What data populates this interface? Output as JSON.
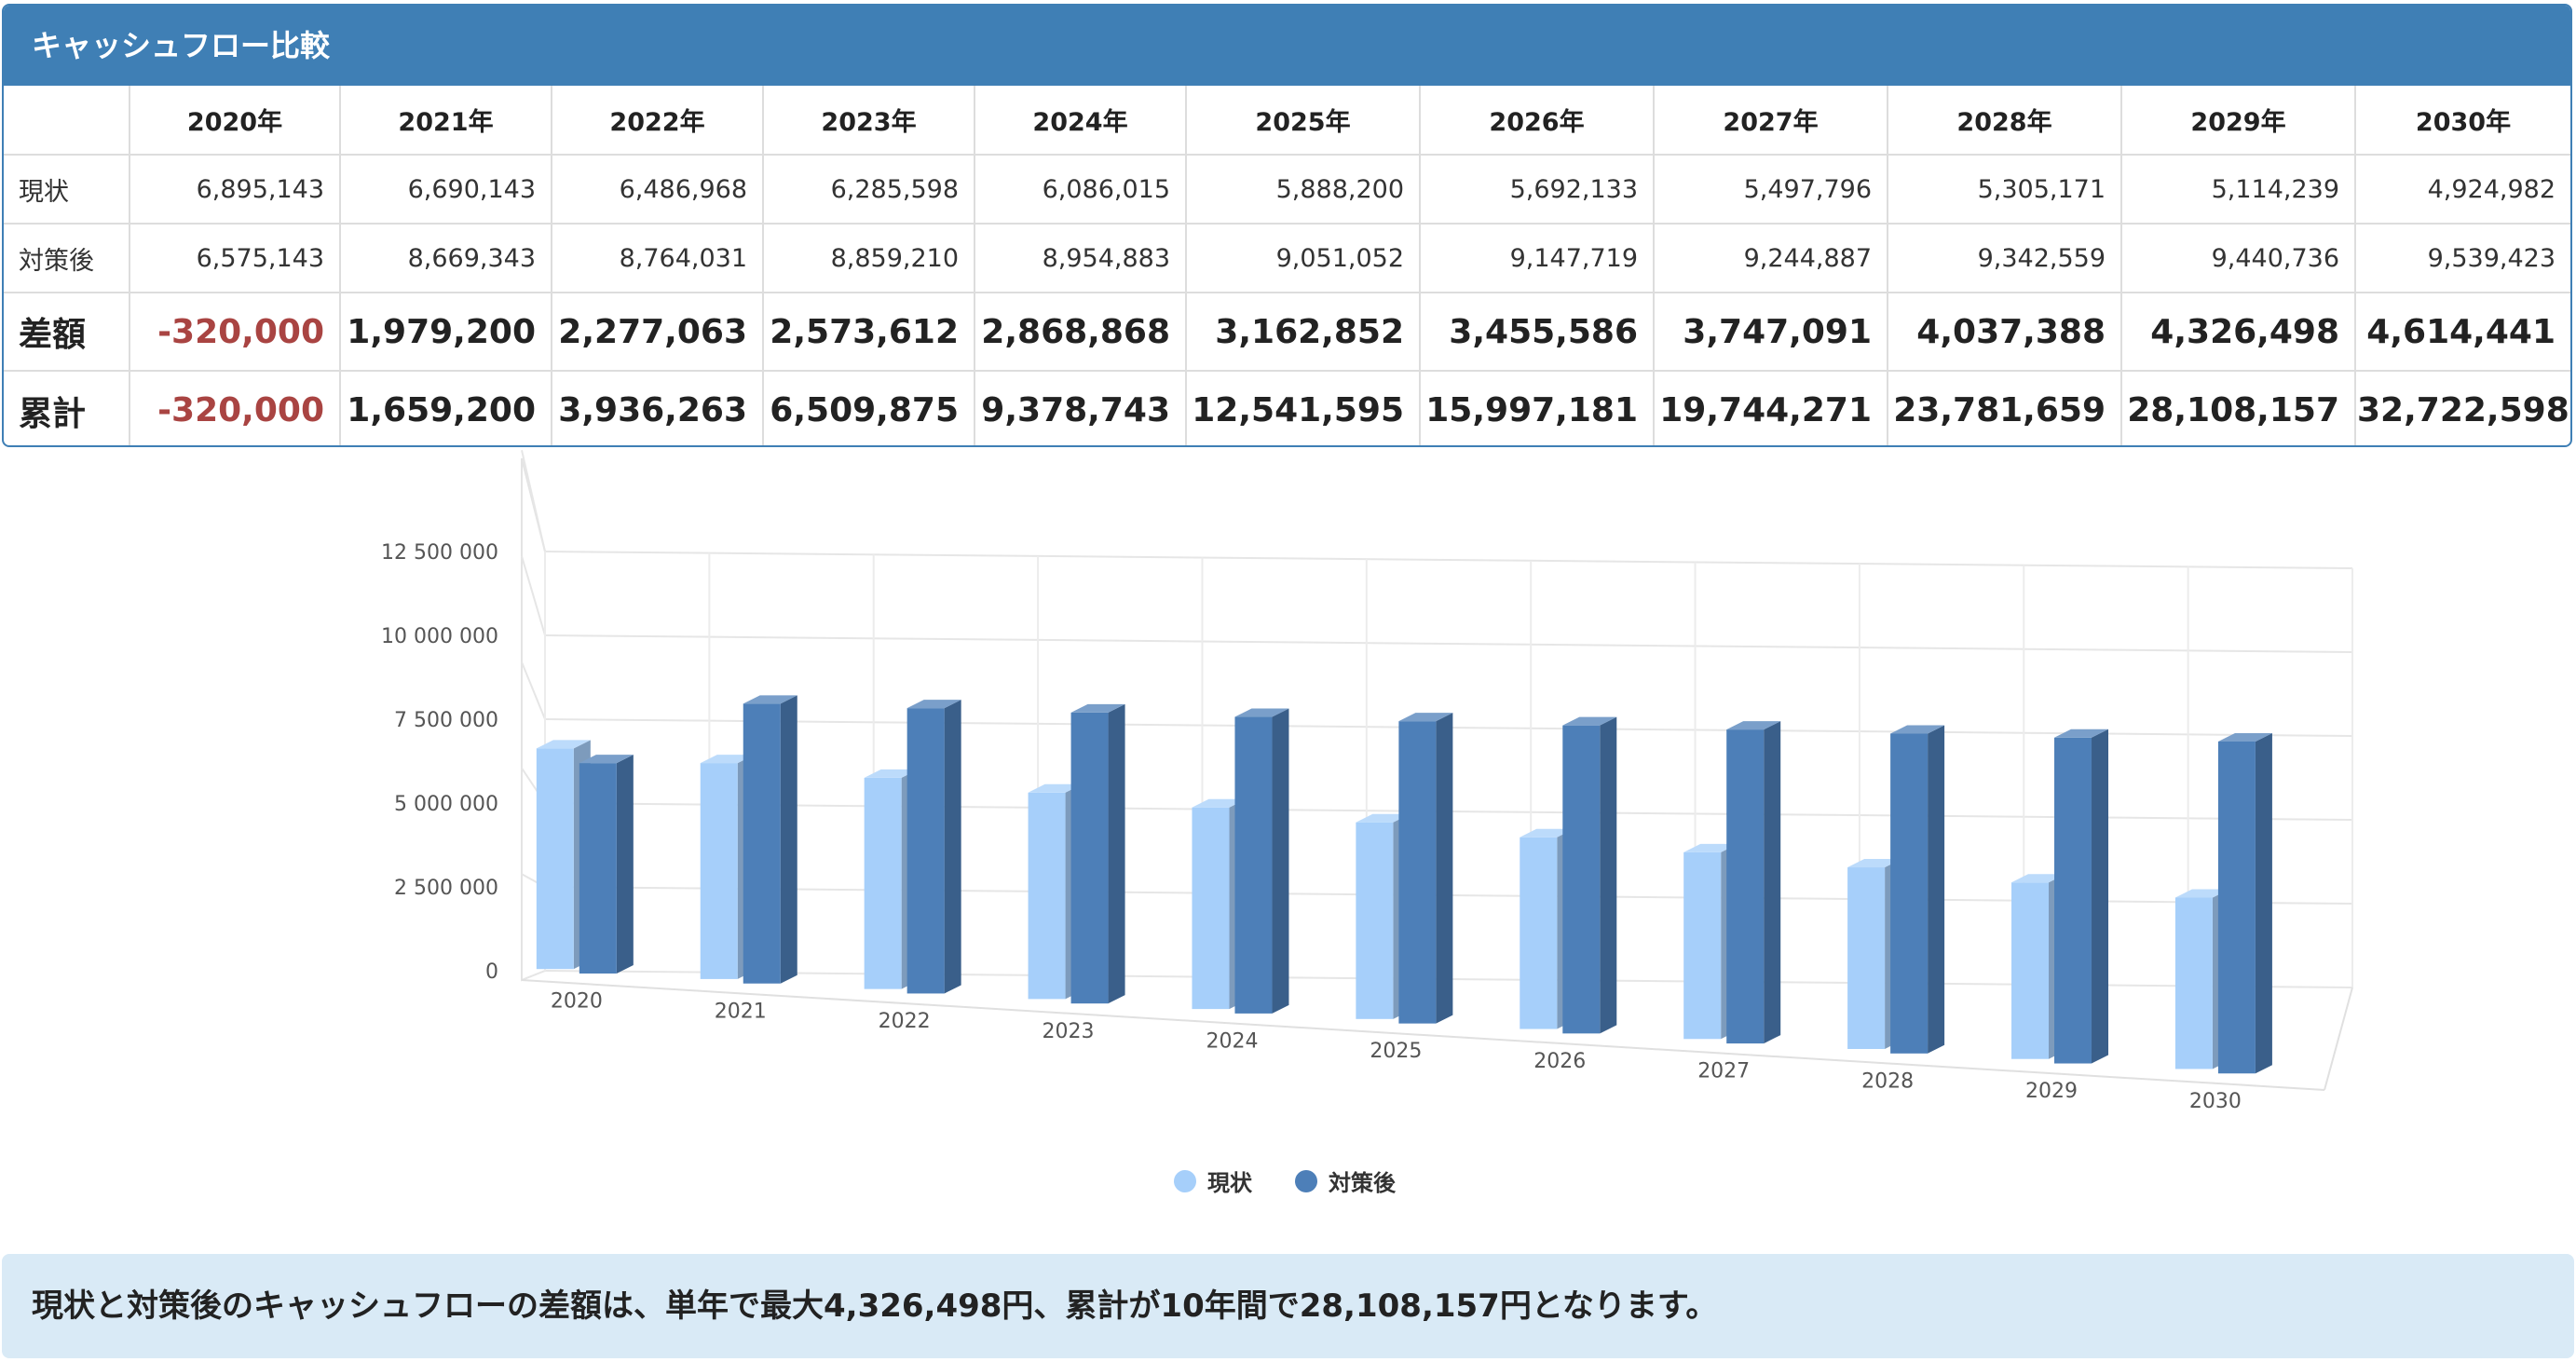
{
  "panel": {
    "title": "キャッシュフロー比較"
  },
  "table": {
    "years": [
      "2020年",
      "2021年",
      "2022年",
      "2023年",
      "2024年",
      "2025年",
      "2026年",
      "2027年",
      "2028年",
      "2029年",
      "2030年"
    ],
    "rows": [
      {
        "label": "現状",
        "values": [
          "6,895,143",
          "6,690,143",
          "6,486,968",
          "6,285,598",
          "6,086,015",
          "5,888,200",
          "5,692,133",
          "5,497,796",
          "5,305,171",
          "5,114,239",
          "4,924,982"
        ]
      },
      {
        "label": "対策後",
        "values": [
          "6,575,143",
          "8,669,343",
          "8,764,031",
          "8,859,210",
          "8,954,883",
          "9,051,052",
          "9,147,719",
          "9,244,887",
          "9,342,559",
          "9,440,736",
          "9,539,423"
        ]
      },
      {
        "label": "差額",
        "values": [
          "-320,000",
          "1,979,200",
          "2,277,063",
          "2,573,612",
          "2,868,868",
          "3,162,852",
          "3,455,586",
          "3,747,091",
          "4,037,388",
          "4,326,498",
          "4,614,441"
        ]
      },
      {
        "label": "累計",
        "values": [
          "-320,000",
          "1,659,200",
          "3,936,263",
          "6,509,875",
          "9,378,743",
          "12,541,595",
          "15,997,181",
          "19,744,271",
          "23,781,659",
          "28,108,157",
          "32,722,598"
        ]
      }
    ]
  },
  "chart_data": {
    "type": "bar",
    "categories": [
      "2020",
      "2021",
      "2022",
      "2023",
      "2024",
      "2025",
      "2026",
      "2027",
      "2028",
      "2029",
      "2030"
    ],
    "series": [
      {
        "name": "現状",
        "color": "#a6cffa",
        "values": [
          6895143,
          6690143,
          6486968,
          6285598,
          6086015,
          5888200,
          5692133,
          5497796,
          5305171,
          5114239,
          4924982
        ]
      },
      {
        "name": "対策後",
        "color": "#4d7fb8",
        "values": [
          6575143,
          8669343,
          8764031,
          8859210,
          8954883,
          9051052,
          9147719,
          9244887,
          9342559,
          9440736,
          9539423
        ]
      }
    ],
    "yticks": [
      "0",
      "2 500 000",
      "5 000 000",
      "7 500 000",
      "10 000 000",
      "12 500 000"
    ],
    "ylim": [
      0,
      12500000
    ],
    "legend_position": "bottom-center",
    "grid": true
  },
  "colors": {
    "header": "#3f7fb5",
    "negative": "#a94442",
    "note_bg": "#d9eaf6"
  },
  "note": {
    "text": "現状と対策後のキャッシュフローの差額は、単年で最大4,326,498円、累計が10年間で28,108,157円となります。"
  }
}
